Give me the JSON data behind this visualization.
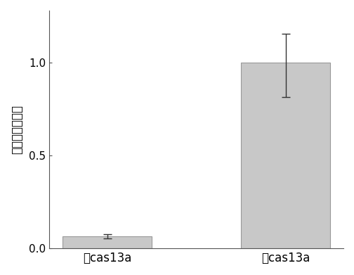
{
  "categories": [
    "无cas13a",
    "有cas13a"
  ],
  "values": [
    0.065,
    1.0
  ],
  "errors_upper": [
    0.012,
    0.155
  ],
  "errors_lower": [
    0.012,
    0.185
  ],
  "bar_color": "#c8c8c8",
  "bar_edgecolor": "#999999",
  "ylabel": "归一化荧光强度",
  "ylim": [
    0,
    1.28
  ],
  "yticks": [
    0.0,
    0.5,
    1.0
  ],
  "bar_width": 0.5,
  "ecolor": "#333333",
  "capsize": 4,
  "linewidth": 0.8
}
